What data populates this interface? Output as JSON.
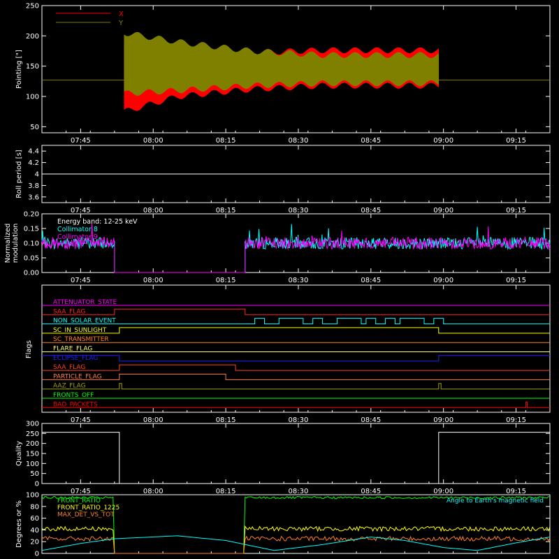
{
  "figure": {
    "background": "#000000",
    "foreground": "#ffffff"
  },
  "chart_data": [
    {
      "id": "pointing",
      "type": "line",
      "ylabel": "Pointing [\"]",
      "ylim": [
        40,
        250
      ],
      "yticks": [
        50,
        100,
        150,
        200,
        250
      ],
      "xticks": [
        "07:45",
        "08:00",
        "08:15",
        "08:30",
        "08:45",
        "09:00",
        "09:15"
      ],
      "legend": {
        "placement": "top-left",
        "entries": [
          {
            "name": "X",
            "color": "#ff0000"
          },
          {
            "name": "Y",
            "color": "#808000"
          }
        ]
      },
      "baseline": 127,
      "active_interval": [
        "07:54",
        "08:59"
      ],
      "series": [
        {
          "name": "X",
          "color": "#ff0000",
          "envelope_upper": [
            {
              "t": "07:54",
              "v": 190
            },
            {
              "t": "08:05",
              "v": 180
            },
            {
              "t": "08:20",
              "v": 172
            },
            {
              "t": "08:35",
              "v": 176
            },
            {
              "t": "08:59",
              "v": 176
            }
          ],
          "envelope_lower": [
            {
              "t": "07:54",
              "v": 75
            },
            {
              "t": "08:05",
              "v": 100
            },
            {
              "t": "08:20",
              "v": 112
            },
            {
              "t": "08:35",
              "v": 118
            },
            {
              "t": "08:59",
              "v": 118
            }
          ]
        },
        {
          "name": "Y",
          "color": "#808000",
          "envelope_upper": [
            {
              "t": "07:54",
              "v": 205
            },
            {
              "t": "08:05",
              "v": 190
            },
            {
              "t": "08:20",
              "v": 175
            },
            {
              "t": "08:35",
              "v": 168
            },
            {
              "t": "08:59",
              "v": 168
            }
          ],
          "envelope_lower": [
            {
              "t": "07:54",
              "v": 105
            },
            {
              "t": "08:05",
              "v": 110
            },
            {
              "t": "08:20",
              "v": 118
            },
            {
              "t": "08:35",
              "v": 122
            },
            {
              "t": "08:59",
              "v": 122
            }
          ]
        }
      ]
    },
    {
      "id": "roll",
      "type": "line",
      "ylabel": "Roll period [s]",
      "ylim": [
        3.5,
        4.5
      ],
      "yticks": [
        3.6,
        3.8,
        4.0,
        4.2,
        4.4
      ],
      "xticks": [
        "07:45",
        "08:00",
        "08:15",
        "08:30",
        "08:45",
        "09:00",
        "09:15"
      ],
      "series": [
        {
          "color": "#ffffff",
          "x": [
            "07:37",
            "09:22"
          ],
          "y": [
            4.0,
            4.0
          ]
        }
      ]
    },
    {
      "id": "modulation",
      "type": "line",
      "ylabel": [
        "Normalized",
        "modulation"
      ],
      "ylim": [
        0,
        0.2
      ],
      "yticks": [
        "0.00",
        "0.05",
        "0.10",
        "0.15",
        "0.20"
      ],
      "xticks": [
        "07:45",
        "08:00",
        "08:15",
        "08:30",
        "08:45",
        "09:00",
        "09:15"
      ],
      "annotations": [
        {
          "text": "Energy band: 12-25 keV",
          "color": "#ffffff"
        },
        {
          "text": "Collimator 8",
          "color": "#00ffff"
        },
        {
          "text": "Collimator 9",
          "color": "#ff00ff"
        }
      ],
      "segments": [
        {
          "start": "07:37",
          "end": "07:52",
          "level": 0.1
        },
        {
          "start": "07:52",
          "end": "08:19",
          "level": 0.0
        },
        {
          "start": "08:19",
          "end": "09:22",
          "level": 0.1
        }
      ]
    },
    {
      "id": "flags",
      "type": "line",
      "ylabel": "Flags",
      "xticks": [
        "07:45",
        "08:00",
        "08:15",
        "08:30",
        "08:45",
        "09:00",
        "09:15"
      ],
      "flags": [
        {
          "name": "ATTENUATOR_STATE",
          "color": "#ff00ff",
          "transitions": []
        },
        {
          "name": "SAA_FLAG",
          "color": "#ff2020",
          "transitions": [
            {
              "start": "07:52",
              "end": "08:19"
            }
          ]
        },
        {
          "name": "NON_SOLAR_EVENT",
          "color": "#00ffff",
          "transitions": [
            {
              "start": "08:21",
              "end": "08:23"
            },
            {
              "start": "08:26",
              "end": "08:31"
            },
            {
              "start": "08:33",
              "end": "08:35"
            },
            {
              "start": "08:38",
              "end": "08:43"
            },
            {
              "start": "08:44",
              "end": "08:46"
            },
            {
              "start": "08:48",
              "end": "08:50"
            },
            {
              "start": "08:51",
              "end": "08:56"
            },
            {
              "start": "08:58",
              "end": "09:00"
            }
          ]
        },
        {
          "name": "SC_IN_SUNLIGHT",
          "color": "#ffff00",
          "transitions": [
            {
              "start": "07:53",
              "end": "08:59"
            }
          ]
        },
        {
          "name": "SC_TRANSMITTER",
          "color": "#ff8020",
          "transitions": []
        },
        {
          "name": "FLARE_FLAG",
          "color": "#ffff66",
          "transitions": []
        },
        {
          "name": "ECLIPSE_FLAG",
          "color": "#2020ff",
          "transitions": [
            {
              "start": "07:53",
              "end": "08:59"
            }
          ],
          "inverted": true
        },
        {
          "name": "SAA_FLAG",
          "color": "#ff4020",
          "transitions": [
            {
              "start": "07:53",
              "end": "08:17"
            }
          ]
        },
        {
          "name": "PARTICLE_FLAG",
          "color": "#ff8040",
          "transitions": [
            {
              "start": "07:53",
              "end": "08:15"
            }
          ]
        },
        {
          "name": "AAZ_FLAG",
          "color": "#a0a000",
          "transitions": [
            {
              "start": "07:53",
              "end": "07:53.5"
            },
            {
              "start": "08:59",
              "end": "08:59.5"
            }
          ]
        },
        {
          "name": "FRONTS_OFF",
          "color": "#00ff00",
          "transitions": []
        },
        {
          "name": "BAD_PACKETS",
          "color": "#ff0000",
          "transitions": [
            {
              "start": "09:17",
              "end": "09:17.3"
            }
          ]
        }
      ]
    },
    {
      "id": "quality",
      "type": "line",
      "ylabel": "Quality",
      "ylim": [
        0,
        300
      ],
      "yticks": [
        0,
        50,
        100,
        150,
        200,
        250,
        300
      ],
      "xticks": [
        "07:45",
        "08:00",
        "08:15",
        "08:30",
        "08:45",
        "09:00",
        "09:15"
      ],
      "series": [
        {
          "color": "#ffffff",
          "x": [
            "07:37",
            "07:53",
            "07:53",
            "08:59",
            "08:59",
            "09:22"
          ],
          "y": [
            256,
            256,
            0,
            0,
            256,
            256
          ]
        }
      ]
    },
    {
      "id": "fronts",
      "type": "line",
      "ylabel": "Degrees or %",
      "ylim": [
        0,
        100
      ],
      "yticks": [
        0,
        20,
        40,
        60,
        80,
        100
      ],
      "legend": {
        "placement": "top-left",
        "entries": [
          {
            "name": "FRONT_RATIO",
            "color": "#00ff00"
          },
          {
            "name": "FRONT_RATIO_1225",
            "color": "#ffff00"
          },
          {
            "name": "MAX_DET_VS_TOT",
            "color": "#ff8020"
          }
        ]
      },
      "annotations": [
        {
          "text": "Angle to Earth's magnetic field",
          "color": "#00ffff",
          "placement": "top-right"
        }
      ],
      "levels": {
        "FRONT_RATIO": [
          {
            "start": "07:37",
            "end": "07:52",
            "v": 95
          },
          {
            "start": "07:52",
            "end": "08:19",
            "v": 0
          },
          {
            "start": "08:19",
            "end": "09:22",
            "v": 95
          }
        ],
        "FRONT_RATIO_1225": [
          {
            "start": "07:37",
            "end": "07:52",
            "v": 42
          },
          {
            "start": "07:52",
            "end": "08:19",
            "v": 0
          },
          {
            "start": "08:19",
            "end": "09:22",
            "v": 42
          }
        ],
        "MAX_DET_VS_TOT": [
          {
            "start": "07:37",
            "end": "07:52",
            "v": 25
          },
          {
            "start": "07:52",
            "end": "08:19",
            "v": 0
          },
          {
            "start": "08:19",
            "end": "09:22",
            "v": 25
          }
        ]
      },
      "angle_curve": {
        "color": "#00ffff",
        "points": [
          {
            "t": "07:37",
            "v": 5
          },
          {
            "t": "07:45",
            "v": 17
          },
          {
            "t": "07:52",
            "v": 25
          },
          {
            "t": "08:05",
            "v": 30
          },
          {
            "t": "08:15",
            "v": 22
          },
          {
            "t": "08:25",
            "v": 5
          },
          {
            "t": "08:35",
            "v": 15
          },
          {
            "t": "08:45",
            "v": 28
          },
          {
            "t": "08:52",
            "v": 22
          },
          {
            "t": "09:00",
            "v": 10
          },
          {
            "t": "09:07",
            "v": 5
          },
          {
            "t": "09:15",
            "v": 18
          },
          {
            "t": "09:22",
            "v": 28
          }
        ]
      }
    }
  ]
}
